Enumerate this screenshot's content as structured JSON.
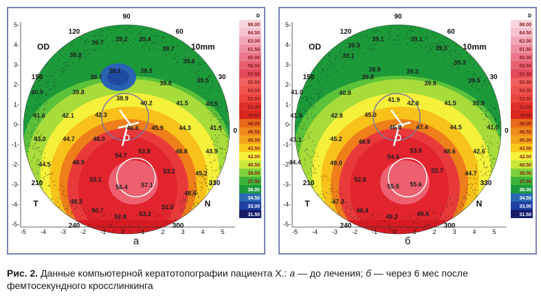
{
  "colors": {
    "panel_border": "#7a82b8",
    "scale": [
      "#f6c2cf",
      "#f2a0b0",
      "#ee7f90",
      "#ea5e72",
      "#e83a4e",
      "#e1242e",
      "#d81a22",
      "#f06060",
      "#f28080",
      "#ef7060",
      "#e8553a",
      "#dd3a1a",
      "#e86a1a",
      "#f2a51a",
      "#f8d21a",
      "#f5f03a",
      "#c8e83a",
      "#7ed23a",
      "#3cb43a",
      "#1c9a3a",
      "#1a8a4a",
      "#2a6ab2",
      "#3a5ac8",
      "#2a3aa8",
      "#1a2a88",
      "#181c6a",
      "#14144a"
    ]
  },
  "panels": [
    {
      "label": "а",
      "eye": "OD",
      "zone": "10mm",
      "unit": "D",
      "angles": {
        "a90": "90",
        "a120": "120",
        "a60": "60",
        "a150": "150",
        "a30": "30",
        "a0": "0",
        "a210": "210",
        "a240": "240",
        "a300": "300",
        "a330": "330"
      },
      "T": "T",
      "N": "N",
      "scale": [
        "88.00",
        "64.50",
        "63.00",
        "61.50",
        "60.00",
        "58.50",
        "57.00",
        "55.50",
        "54.00",
        "52.50",
        "51.00",
        "49.50",
        "48.00",
        "46.50",
        "45.00",
        "43.50",
        "42.00",
        "40.50",
        "39.00",
        "37.50",
        "36.00",
        "34.50",
        "33.00",
        "31.50"
      ],
      "readings": [
        "39.2",
        "39.4",
        "39.7",
        "39.7",
        "39.8",
        "39.6",
        "38.1",
        "38.5",
        "38.7",
        "39.8",
        "39.5",
        "40.9",
        "39.8",
        "38.9",
        "40.2",
        "41.5",
        "40.5",
        "41.6",
        "42.1",
        "42.3",
        "46.6",
        "43.0",
        "44.7",
        "48.0",
        "45.9",
        "44.3",
        "41.5",
        "54.7",
        "53.8",
        "48.8",
        "43.9",
        "44.5",
        "48.9",
        "53.2",
        "45.2",
        "53.1",
        "56.4",
        "57.1",
        "48.4",
        "48.3",
        "51.6",
        "50.7",
        "52.8",
        "53.3"
      ]
    },
    {
      "label": "б",
      "eye": "OD",
      "zone": "10mm",
      "unit": "D",
      "angles": {
        "a90": "90",
        "a120": "120",
        "a60": "60",
        "a150": "150",
        "a30": "30",
        "a0": "0",
        "a210": "210",
        "a240": "240",
        "a300": "300",
        "a330": "330"
      },
      "T": "T",
      "N": "N",
      "scale": [
        "88.00",
        "64.50",
        "63.00",
        "61.50",
        "60.00",
        "58.50",
        "57.00",
        "55.50",
        "54.00",
        "52.50",
        "51.00",
        "49.50",
        "48.00",
        "46.50",
        "45.00",
        "43.50",
        "42.00",
        "40.50",
        "39.00",
        "37.50",
        "36.00",
        "34.50",
        "33.00",
        "31.50"
      ],
      "readings": [
        "39.1",
        "39.1",
        "39.3",
        "39.3",
        "39.1",
        "39.3",
        "38.9",
        "39.3",
        "39.8",
        "39.8",
        "39.5",
        "41.0",
        "40.8",
        "41.9",
        "42.6",
        "41.5",
        "39.9",
        "41.9",
        "42.8",
        "45.0",
        "46.8",
        "47.4",
        "44.5",
        "43.1",
        "45.2",
        "48.9",
        "54.4",
        "53.9",
        "48.6",
        "42.6",
        "44.4",
        "49.0",
        "52.8",
        "52.7",
        "44.7",
        "55.5",
        "55.6",
        "47.3",
        "48.4",
        "49.2",
        "49.4",
        "41.0"
      ]
    }
  ],
  "caption": {
    "fig": "Рис. 2.",
    "text_1": " Данные компьютерной кератотопографии пациента Х.: ",
    "a": "а",
    "text_2": " — до лечения; ",
    "b": "б",
    "text_3": " — через 6 мес после фемтосекундного кросслинкинга"
  }
}
